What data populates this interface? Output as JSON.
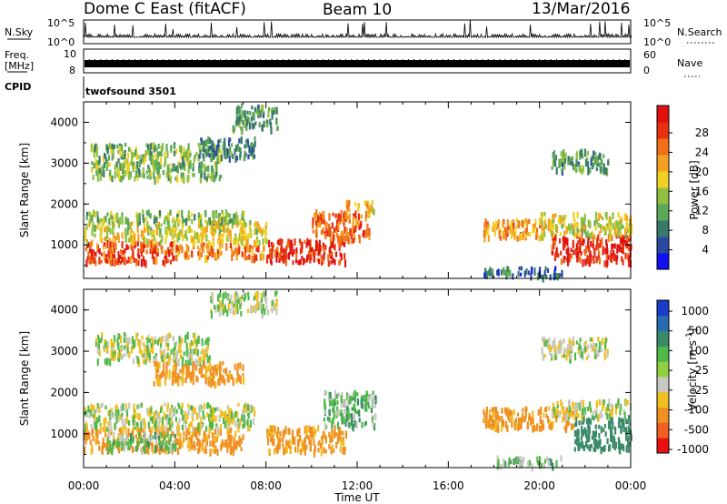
{
  "header": {
    "radar": "Dome C East (fitACF)",
    "beam": "Beam 10",
    "date": "13/Mar/2016"
  },
  "strips": {
    "nsky_label": "N.Sky",
    "nsearch_label": "N.Search",
    "nsky_ticks": [
      "10^5",
      "10^0"
    ],
    "freq_label_line1": "Freq.",
    "freq_label_line2": "[MHz]",
    "freq_ticks": [
      "10",
      "8"
    ],
    "nave_label": "Nave",
    "nave_ticks": [
      "60",
      "0"
    ],
    "cpid_label": "CPID",
    "cpid_value": "twofsound 3501"
  },
  "chart_data": [
    {
      "type": "heatmap",
      "name": "power",
      "xlabel": "",
      "ylabel": "Slant Range [km]",
      "xlim": [
        0,
        24
      ],
      "ylim": [
        180,
        4500
      ],
      "x_ticks": [
        "00:00",
        "04:00",
        "08:00",
        "12:00",
        "16:00",
        "20:00",
        "00:00"
      ],
      "y_ticks": [
        "1000",
        "2000",
        "3000",
        "4000"
      ],
      "colorbar": {
        "label": "Power [dB]",
        "ticks": [
          "4",
          "8",
          "12",
          "16",
          "20",
          "24",
          "28"
        ],
        "colors": [
          "#1010f0",
          "#2a4aa0",
          "#3a7a6a",
          "#5aa858",
          "#90c040",
          "#f0d020",
          "#f5a020",
          "#f07018",
          "#e83010",
          "#e01010"
        ]
      },
      "regions": [
        {
          "t0": 0.0,
          "t1": 4.0,
          "r0": 550,
          "r1": 1050,
          "level": 27
        },
        {
          "t0": 4.0,
          "t1": 8.0,
          "r0": 650,
          "r1": 1000,
          "level": 24
        },
        {
          "t0": 0.0,
          "t1": 8.0,
          "r0": 1050,
          "r1": 1550,
          "level": 18
        },
        {
          "t0": 0.0,
          "t1": 7.0,
          "r0": 1550,
          "r1": 1800,
          "level": 14
        },
        {
          "t0": 8.0,
          "t1": 11.5,
          "r0": 550,
          "r1": 1100,
          "level": 28
        },
        {
          "t0": 10.0,
          "t1": 12.5,
          "r0": 1100,
          "r1": 1800,
          "level": 25
        },
        {
          "t0": 11.5,
          "t1": 12.8,
          "r0": 1800,
          "r1": 2050,
          "level": 20
        },
        {
          "t0": 0.3,
          "t1": 6.0,
          "r0": 2600,
          "r1": 3450,
          "level": 14
        },
        {
          "t0": 5.0,
          "t1": 7.5,
          "r0": 3100,
          "r1": 3600,
          "level": 10
        },
        {
          "t0": 6.5,
          "t1": 8.5,
          "r0": 3800,
          "r1": 4400,
          "level": 12
        },
        {
          "t0": 17.5,
          "t1": 20.5,
          "r0": 1150,
          "r1": 1600,
          "level": 22
        },
        {
          "t0": 20.5,
          "t1": 24.0,
          "r0": 550,
          "r1": 1200,
          "level": 28
        },
        {
          "t0": 20.0,
          "t1": 24.0,
          "r0": 1200,
          "r1": 1750,
          "level": 18
        },
        {
          "t0": 17.5,
          "t1": 21.0,
          "r0": 200,
          "r1": 420,
          "level": 8
        },
        {
          "t0": 20.5,
          "t1": 23.0,
          "r0": 2800,
          "r1": 3300,
          "level": 12
        }
      ]
    },
    {
      "type": "heatmap",
      "name": "velocity",
      "xlabel": "Time UT",
      "ylabel": "Slant Range [km]",
      "xlim": [
        0,
        24
      ],
      "ylim": [
        180,
        4500
      ],
      "x_ticks": [
        "00:00",
        "04:00",
        "08:00",
        "12:00",
        "16:00",
        "20:00",
        "00:00"
      ],
      "y_ticks": [
        "1000",
        "2000",
        "3000",
        "4000"
      ],
      "colorbar": {
        "label": "Velocity [m s-1]",
        "ticks": [
          "1000",
          "500",
          "100",
          "25",
          "-25",
          "-100",
          "-500",
          "-1000"
        ],
        "colors": [
          "#1a3cc8",
          "#2a6ab0",
          "#3a8a6a",
          "#50b848",
          "#90d040",
          "#c8c8c0",
          "#f0c020",
          "#f09020",
          "#f06020",
          "#e81010"
        ]
      },
      "regions": [
        {
          "t0": 0.0,
          "t1": 7.0,
          "r0": 550,
          "r1": 1100,
          "level": -150
        },
        {
          "t0": 0.0,
          "t1": 7.5,
          "r0": 1100,
          "r1": 1700,
          "level": 0
        },
        {
          "t0": 1.0,
          "t1": 4.0,
          "r0": 600,
          "r1": 1000,
          "level": 60
        },
        {
          "t0": 8.0,
          "t1": 11.5,
          "r0": 550,
          "r1": 1150,
          "level": -150
        },
        {
          "t0": 10.5,
          "t1": 12.8,
          "r0": 1150,
          "r1": 2000,
          "level": 60
        },
        {
          "t0": 0.5,
          "t1": 5.5,
          "r0": 2700,
          "r1": 3400,
          "level": 0
        },
        {
          "t0": 3.0,
          "t1": 7.0,
          "r0": 2200,
          "r1": 2700,
          "level": -150
        },
        {
          "t0": 5.5,
          "t1": 8.5,
          "r0": 3900,
          "r1": 4400,
          "level": 0
        },
        {
          "t0": 17.5,
          "t1": 21.5,
          "r0": 1100,
          "r1": 1600,
          "level": -150
        },
        {
          "t0": 21.5,
          "t1": 24.0,
          "r0": 600,
          "r1": 1400,
          "level": 200
        },
        {
          "t0": 20.5,
          "t1": 24.0,
          "r0": 1400,
          "r1": 1800,
          "level": 0
        },
        {
          "t0": 18.0,
          "t1": 21.0,
          "r0": 200,
          "r1": 420,
          "level": 60
        },
        {
          "t0": 20.0,
          "t1": 23.0,
          "r0": 2800,
          "r1": 3300,
          "level": 0
        }
      ]
    }
  ]
}
